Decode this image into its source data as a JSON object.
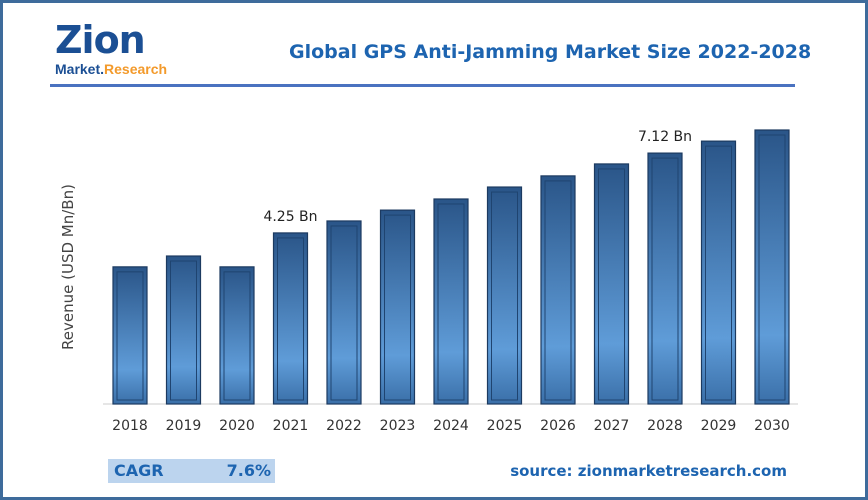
{
  "logo": {
    "name": "Zion",
    "sub1": "Market",
    "sub2": "Research"
  },
  "chart_data": {
    "type": "bar",
    "title": "Global GPS Anti-Jamming Market Size 2022-2028",
    "ylabel": "Revenue (USD Mn/Bn)",
    "xlabel": "",
    "categories": [
      "2018",
      "2019",
      "2020",
      "2021",
      "2022",
      "2023",
      "2024",
      "2025",
      "2026",
      "2027",
      "2028",
      "2029",
      "2030"
    ],
    "values": [
      3.03,
      3.42,
      3.03,
      4.25,
      4.68,
      5.07,
      5.47,
      5.9,
      6.3,
      6.73,
      7.12,
      7.55,
      7.95
    ],
    "data_labels": {
      "3": "4.25 Bn",
      "10": "7.12 Bn"
    },
    "ylim": [
      0,
      8
    ],
    "grid": false,
    "bar_color": "#2d5f96"
  },
  "footer": {
    "cagr_label": "CAGR",
    "cagr_value": "7.6%",
    "source": "source: zionmarketresearch.com"
  }
}
